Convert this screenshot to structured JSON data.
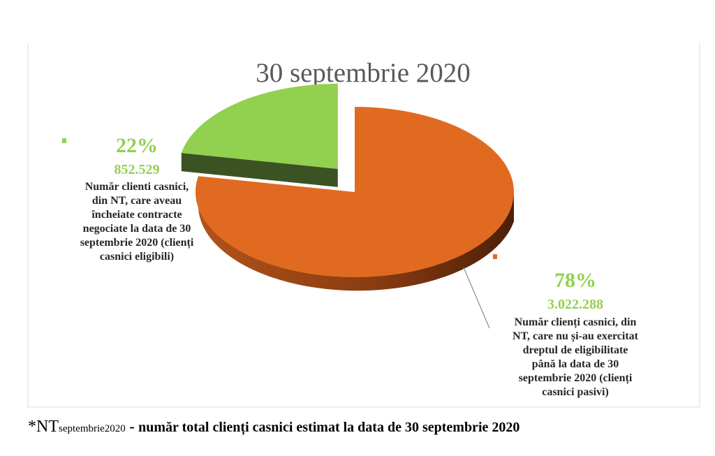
{
  "chart_data": {
    "type": "pie",
    "title": "30 septembrie 2020",
    "slices": [
      {
        "percent_label": "22%",
        "value_label": "852.529",
        "value": 852529,
        "description": [
          "Număr clienti casnici,",
          "din NT, care aveau",
          "încheiate contracte",
          "negociate la data de 30",
          "septembrie 2020 (clienți",
          "casnici eligibili)"
        ],
        "color": "#92d050",
        "side_color": "#3b5323",
        "exploded": true
      },
      {
        "percent_label": "78%",
        "value_label": "3.022.288",
        "value": 3022288,
        "description": [
          "Număr clienți casnici, din",
          "NT, care nu și-au exercitat",
          "dreptul de eligibilitate",
          "până la data de 30",
          "septembrie 2020 (clienți",
          "casnici pasivi)"
        ],
        "color": "#e06b20",
        "side_color": "#7a3410",
        "exploded": false
      }
    ],
    "label_color": "#92d050"
  },
  "footnote": {
    "star": "*NT",
    "subscript": "septembrie2020",
    "separator": " - ",
    "text": "număr total clienți casnici estimat la data de 30 septembrie 2020"
  }
}
